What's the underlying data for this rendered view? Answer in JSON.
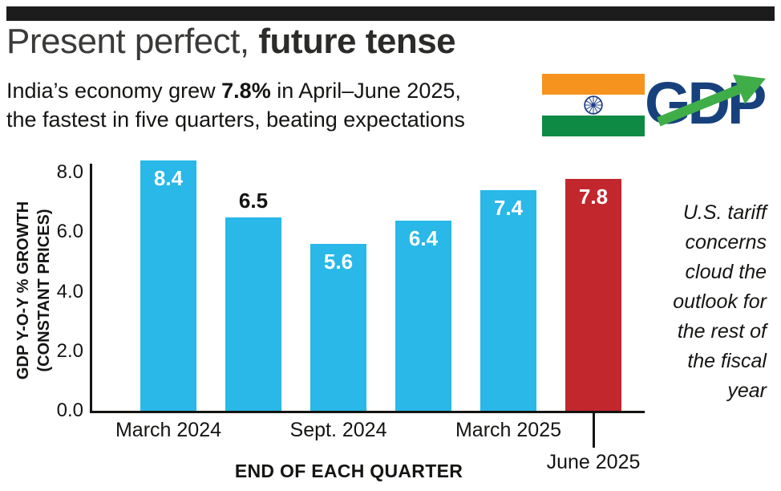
{
  "header": {
    "title": {
      "regular": "Present perfect, ",
      "bold": "future tense"
    },
    "subtitle": {
      "line1_pre": "India’s economy grew ",
      "line1_bold": "7.8%",
      "line1_post": " in April–June 2025,",
      "line2": "the fastest in five quarters, beating expectations"
    },
    "logo": {
      "text": "GDP",
      "color": "#17417d",
      "arrow_color": "#3fae49",
      "flag": {
        "saffron": "#f6921e",
        "green": "#0f8a44",
        "chakra": "#1f3c88"
      }
    }
  },
  "chart_data": {
    "type": "bar",
    "title": "Present perfect, future tense",
    "subtitle": "India’s economy grew 7.8% in April–June 2025, the fastest in five quarters, beating expectations",
    "ylabel_line1": "GDP Y-O-Y % GROWTH",
    "ylabel_line2": "(CONSTANT PRICES)",
    "xlabel": "END OF EACH QUARTER",
    "ylim": [
      0,
      8.8
    ],
    "y_tick_labels": [
      "8.0",
      "6.0",
      "4.0",
      "2.0",
      "0.0"
    ],
    "grid": false,
    "legend": false,
    "bar_color_default": "#29b8e8",
    "bar_color_highlight": "#c1272d",
    "bars": [
      {
        "value": 8.4,
        "label": "8.4",
        "color": "#29b8e8",
        "label_position": "inside"
      },
      {
        "value": 6.5,
        "label": "6.5",
        "color": "#29b8e8",
        "label_position": "above"
      },
      {
        "value": 5.6,
        "label": "5.6",
        "color": "#29b8e8",
        "label_position": "inside"
      },
      {
        "value": 6.4,
        "label": "6.4",
        "color": "#29b8e8",
        "label_position": "inside"
      },
      {
        "value": 7.4,
        "label": "7.4",
        "color": "#29b8e8",
        "label_position": "inside"
      },
      {
        "value": 7.8,
        "label": "7.8",
        "color": "#c1272d",
        "label_position": "inside"
      }
    ],
    "x_ticks": [
      {
        "label": "March 2024",
        "bar_index": 0,
        "dropped": false
      },
      {
        "label": "Sept. 2024",
        "bar_index": 2,
        "dropped": false
      },
      {
        "label": "March 2025",
        "bar_index": 4,
        "dropped": false
      },
      {
        "label": "June 2025",
        "bar_index": 5,
        "dropped": true
      }
    ],
    "annotation": "U.S. tariff concerns cloud the outlook for the rest of the fiscal year"
  }
}
